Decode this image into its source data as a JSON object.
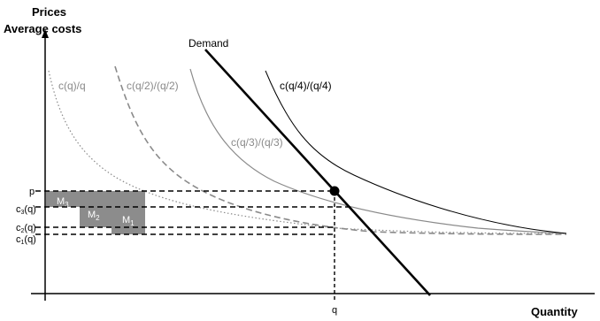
{
  "axes": {
    "y_title_line1": "Prices",
    "y_title_line2": "Average costs",
    "x_title": "Quantity"
  },
  "curves": {
    "c1": "c(q)/q",
    "c2": "c(q/2)/(q/2)",
    "c3": "c(q/3)/(q/3)",
    "c4": "c(q/4)/(q/4)",
    "demand": "Demand"
  },
  "ticks": {
    "p": "p",
    "c3": "c",
    "c3_sub": "3",
    "c3_tail": "(q)",
    "c2": "c",
    "c2_sub": "2",
    "c2_tail": "(q)",
    "c1": "c",
    "c1_sub": "1",
    "c1_tail": "(q)",
    "q": "q"
  },
  "boxes": {
    "m3": "M",
    "m3_sub": "3",
    "m2": "M",
    "m2_sub": "2",
    "m1": "M",
    "m1_sub": "1"
  },
  "colors": {
    "gray_curve": "#8a8a8a",
    "box_fill": "#8c8c8c",
    "black": "#000000"
  }
}
